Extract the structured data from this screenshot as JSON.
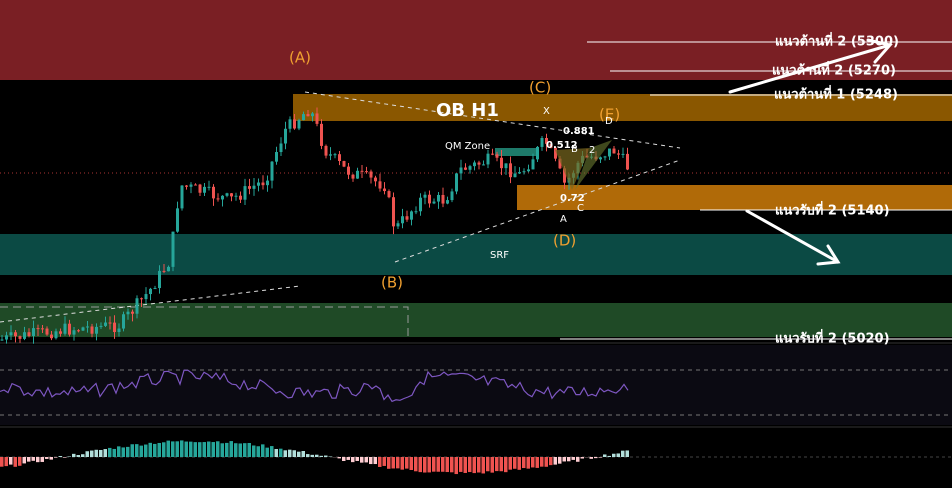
{
  "levels": [
    {
      "label": "แนวต้านที่ 2 (5300)"
    },
    {
      "label": "แนวต้านที่ 2 (5270)"
    },
    {
      "label": "แนวต้านที่ 1 (5248)"
    },
    {
      "label": "แนวรับที่ 2 (5140)"
    },
    {
      "label": "แนวรับที่ 2 (5020)"
    }
  ],
  "waves": [
    "(A)",
    "(B)",
    "(C)",
    "(D)",
    "(E)"
  ],
  "zones": {
    "ob": "OB H1",
    "qm": "QM Zone",
    "srf": "SRF"
  },
  "pattern": {
    "points": [
      "X",
      "A",
      "B",
      "C",
      "D"
    ],
    "ratios": [
      "0.881",
      "0.512",
      "0.72",
      "2"
    ]
  }
}
